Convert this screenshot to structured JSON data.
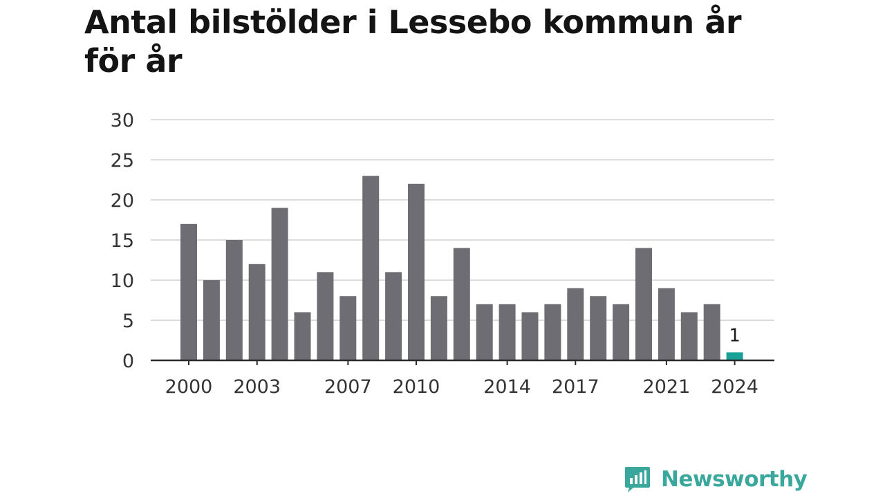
{
  "title": "Antal bilstölder i Lessebo kommun år för år",
  "logo": {
    "text": "Newsworthy",
    "icon": "newsworthy-logo-icon",
    "color": "#3aa79c"
  },
  "colors": {
    "bar": "#6e6d73",
    "highlight": "#17a096",
    "grid": "#dcdcdc",
    "axis": "#2b2b2b"
  },
  "chart_data": {
    "type": "bar",
    "title": "Antal bilstölder i Lessebo kommun år för år",
    "xlabel": "",
    "ylabel": "",
    "categories": [
      "2000",
      "2001",
      "2002",
      "2003",
      "2004",
      "2005",
      "2006",
      "2007",
      "2008",
      "2009",
      "2010",
      "2011",
      "2012",
      "2013",
      "2014",
      "2015",
      "2016",
      "2017",
      "2018",
      "2019",
      "2020",
      "2021",
      "2022",
      "2023",
      "2024"
    ],
    "values": [
      17,
      10,
      15,
      12,
      19,
      6,
      11,
      8,
      23,
      11,
      22,
      8,
      14,
      7,
      7,
      6,
      7,
      9,
      8,
      7,
      14,
      9,
      6,
      7,
      1
    ],
    "x_tick_labels": [
      "2000",
      "2003",
      "2007",
      "2010",
      "2014",
      "2017",
      "2021",
      "2024"
    ],
    "y_ticks": [
      0,
      5,
      10,
      15,
      20,
      25,
      30
    ],
    "ylim": [
      0,
      30
    ],
    "grid": true,
    "highlight_category": "2024",
    "data_labels": [
      {
        "category": "2024",
        "text": "1"
      }
    ]
  }
}
